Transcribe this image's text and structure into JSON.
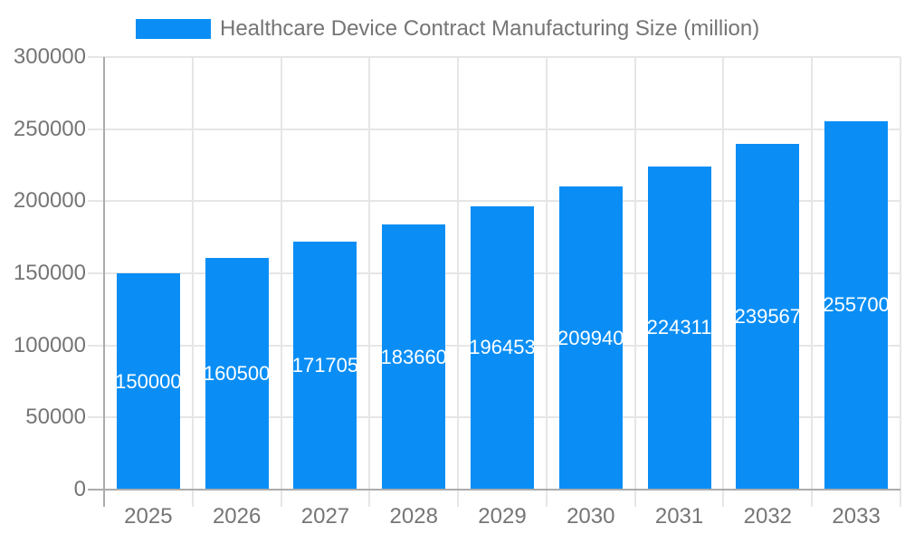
{
  "chart_data": {
    "type": "bar",
    "title": "Healthcare Device Contract Manufacturing Size (million)",
    "categories": [
      "2025",
      "2026",
      "2027",
      "2028",
      "2029",
      "2030",
      "2031",
      "2032",
      "2033"
    ],
    "values": [
      150000,
      160500,
      171705,
      183660,
      196453,
      209940,
      224311,
      239567,
      255700
    ],
    "bar_value_labels": [
      "150000",
      "160500",
      "171705",
      "183660",
      "196453",
      "209940",
      "224311",
      "239567",
      "255700"
    ],
    "y_ticks": [
      0,
      50000,
      100000,
      150000,
      200000,
      250000,
      300000
    ],
    "y_tick_labels": [
      "0",
      "50000",
      "100000",
      "150000",
      "200000",
      "250000",
      "300000"
    ],
    "ylim": [
      0,
      300000
    ],
    "xlabel": "",
    "ylabel": "",
    "grid": true,
    "legend_position": "top",
    "colors": {
      "bar": "#0a8ef5",
      "grid": "#e6e6e6",
      "axis": "#ababab",
      "tick_label": "#757575",
      "bar_label": "#ffffff",
      "background": "#ffffff"
    }
  }
}
